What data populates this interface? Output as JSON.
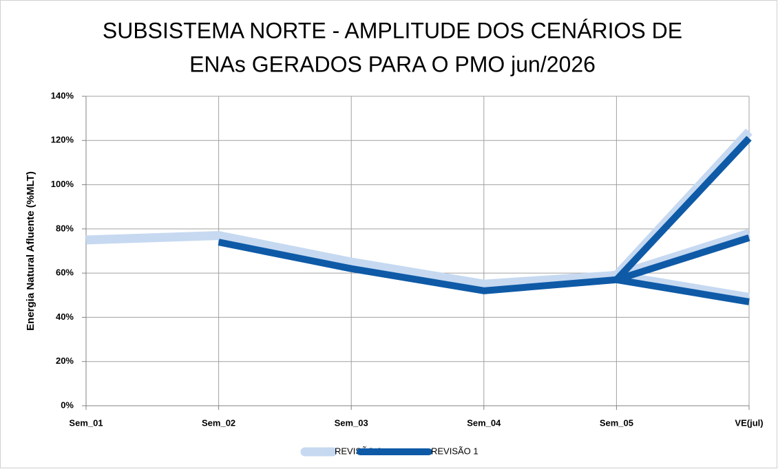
{
  "chart_data": {
    "type": "line",
    "title": [
      "SUBSISTEMA NORTE - AMPLITUDE DOS CENÁRIOS DE",
      "ENAs GERADOS PARA O PMO jun/2026"
    ],
    "y_label": "Energia Natural Afluente (%MLT)",
    "categories": [
      "Sem_01",
      "Sem_02",
      "Sem_03",
      "Sem_04",
      "Sem_05",
      "VE(jul)"
    ],
    "series": [
      {
        "name": "REVISÃO 0",
        "color": "#c6d9f1",
        "values": [
          75,
          77,
          65,
          55,
          59,
          null
        ],
        "branches": [
          124,
          78,
          49
        ]
      },
      {
        "name": "REVISÃO 1",
        "color": "#0e5aa7",
        "values": [
          null,
          74,
          62,
          52,
          57,
          null
        ],
        "branches": [
          121,
          76,
          47
        ]
      }
    ],
    "ylim": [
      0,
      140
    ],
    "yticks": [
      {
        "value": 0,
        "label": "0%"
      },
      {
        "value": 20,
        "label": "20%"
      },
      {
        "value": 40,
        "label": "40%"
      },
      {
        "value": 60,
        "label": "60%"
      },
      {
        "value": 80,
        "label": "80%"
      },
      {
        "value": 100,
        "label": "100%"
      },
      {
        "value": 120,
        "label": "120%"
      },
      {
        "value": 140,
        "label": "140%"
      }
    ],
    "grid": true,
    "legend": "bottom"
  }
}
